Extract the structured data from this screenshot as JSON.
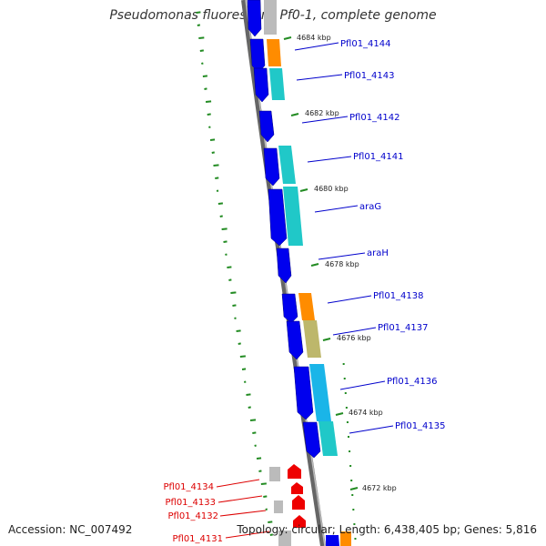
{
  "title": "Pseudomonas fluorescens Pf0-1, complete genome",
  "footer": {
    "accession": "Accession: NC_007492",
    "summary": "Topology: circular; Length: 6,438,405 bp; Genes: 5,816"
  },
  "colors": {
    "backbone": "#888888",
    "forward_gene": "#0000ee",
    "reverse_gene": "#ee0000",
    "label_forward": "#0000cc",
    "label_reverse": "#dd0000",
    "cog_orange": "#ff8c00",
    "cog_cyan": "#20c8c8",
    "cog_sky": "#1ab5e8",
    "cog_khaki": "#bdb76b",
    "cog_gray": "#bbbbbb",
    "gc_skew": "#228b22"
  },
  "gene_labels": [
    {
      "name": "Pfl01_4144",
      "strand": "forward"
    },
    {
      "name": "Pfl01_4143",
      "strand": "forward"
    },
    {
      "name": "Pfl01_4142",
      "strand": "forward"
    },
    {
      "name": "Pfl01_4141",
      "strand": "forward"
    },
    {
      "name": "araG",
      "strand": "forward"
    },
    {
      "name": "araH",
      "strand": "forward"
    },
    {
      "name": "Pfl01_4138",
      "strand": "forward"
    },
    {
      "name": "Pfl01_4137",
      "strand": "forward"
    },
    {
      "name": "Pfl01_4136",
      "strand": "forward"
    },
    {
      "name": "Pfl01_4135",
      "strand": "forward"
    },
    {
      "name": "Pfl01_4134",
      "strand": "reverse"
    },
    {
      "name": "Pfl01_4133",
      "strand": "reverse"
    },
    {
      "name": "Pfl01_4132",
      "strand": "reverse"
    },
    {
      "name": "Pfl01_4131",
      "strand": "reverse"
    }
  ],
  "position_labels": [
    "4684 kbp",
    "4682 kbp",
    "4680 kbp",
    "4678 kbp",
    "4676 kbp",
    "4674 kbp",
    "4672 kbp"
  ]
}
